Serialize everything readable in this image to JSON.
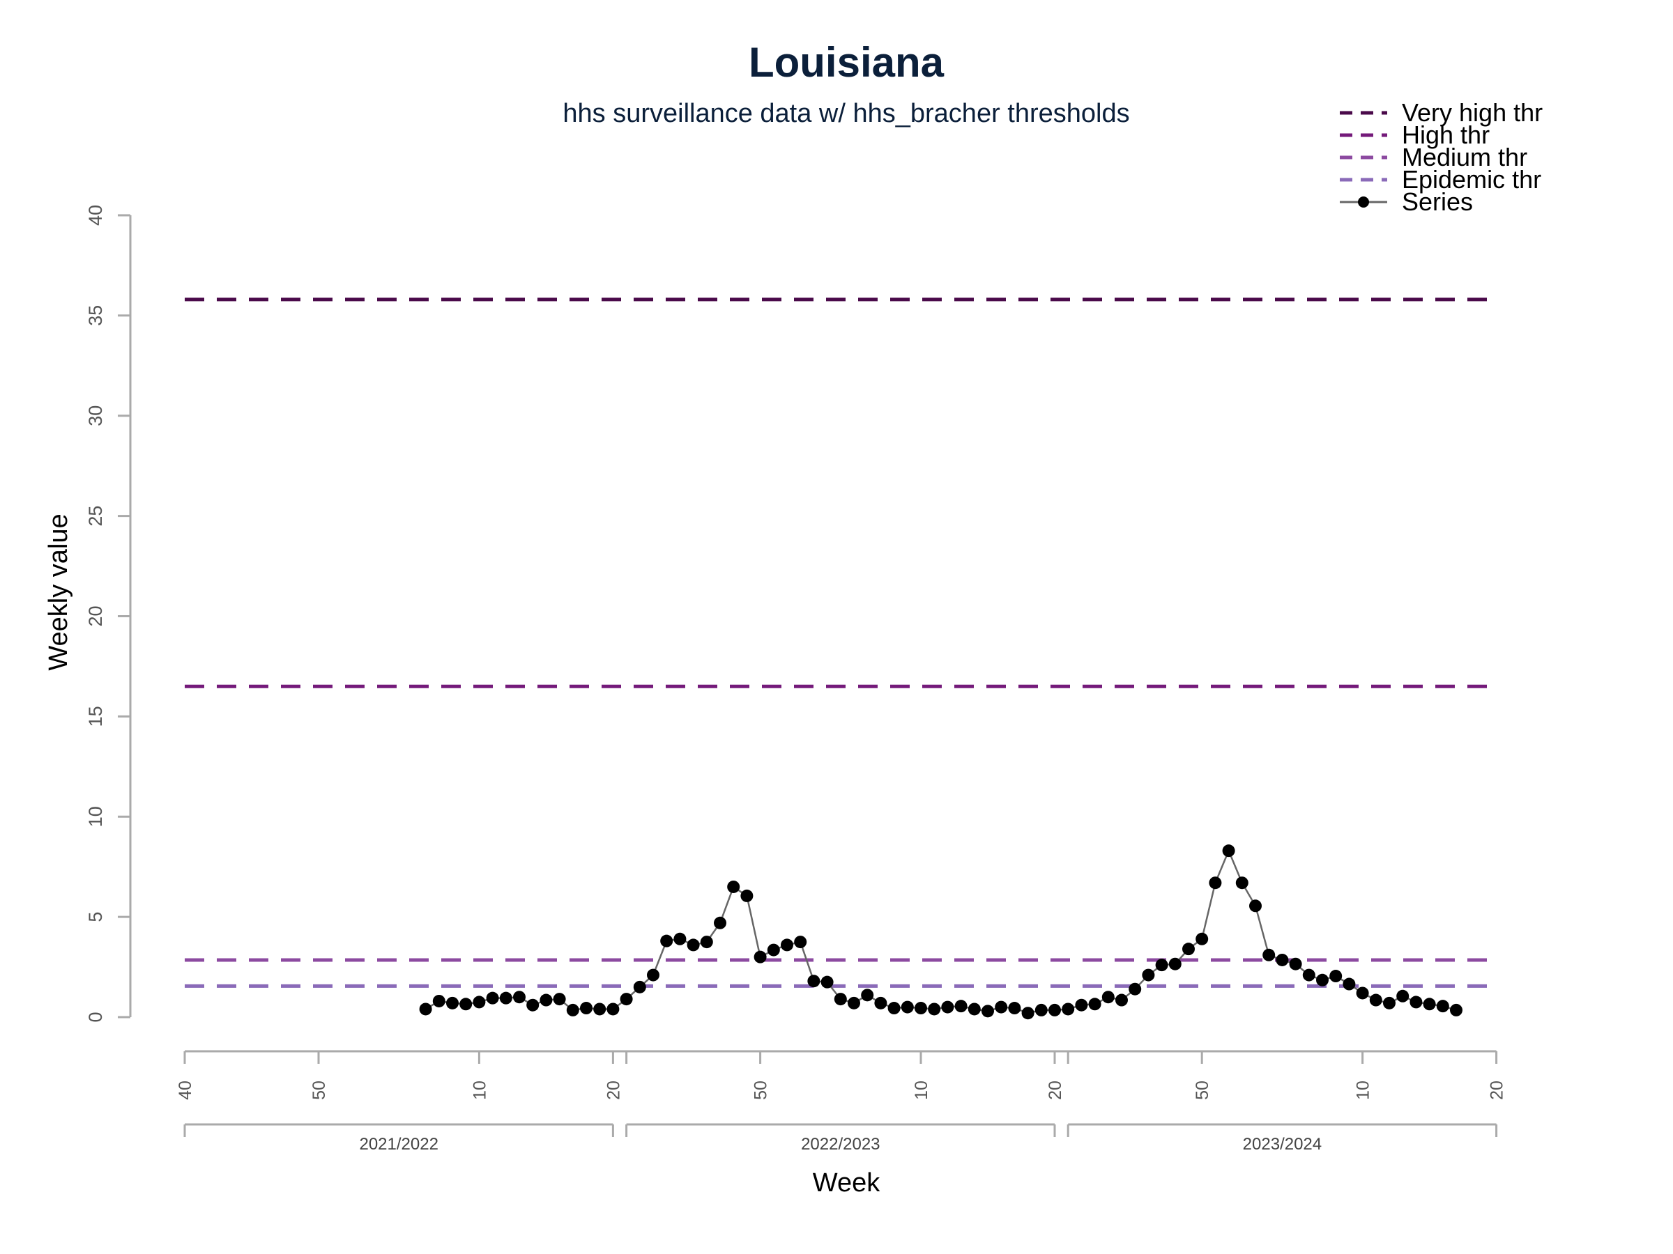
{
  "chart_data": {
    "type": "line",
    "title": "Louisiana",
    "subtitle": "hhs surveillance data w/ hhs_bracher thresholds",
    "xlabel": "Week",
    "ylabel": "Weekly value",
    "ylim": [
      0,
      40
    ],
    "yticks": [
      0,
      5,
      10,
      15,
      20,
      25,
      30,
      35,
      40
    ],
    "grid": false,
    "legend_position": "top-right",
    "week_ticks": [
      {
        "index": 0,
        "label": "40"
      },
      {
        "index": 10,
        "label": "50"
      },
      {
        "index": 22,
        "label": "10"
      },
      {
        "index": 32,
        "label": "20"
      },
      {
        "index": 33,
        "label": ""
      },
      {
        "index": 43,
        "label": "50"
      },
      {
        "index": 55,
        "label": "10"
      },
      {
        "index": 65,
        "label": "20"
      },
      {
        "index": 66,
        "label": ""
      },
      {
        "index": 76,
        "label": "50"
      },
      {
        "index": 88,
        "label": "10"
      },
      {
        "index": 98,
        "label": "20"
      }
    ],
    "seasons": [
      {
        "label": "2021/2022",
        "start_index": 0,
        "end_index": 32
      },
      {
        "label": "2022/2023",
        "start_index": 33,
        "end_index": 65
      },
      {
        "label": "2023/2024",
        "start_index": 66,
        "end_index": 98
      }
    ],
    "thresholds": [
      {
        "name": "Very high thr",
        "value": 35.8,
        "color": "#4a0a4a"
      },
      {
        "name": "High thr",
        "value": 16.5,
        "color": "#741a7a"
      },
      {
        "name": "Medium thr",
        "value": 2.85,
        "color": "#8c4aa0"
      },
      {
        "name": "Epidemic thr",
        "value": 1.55,
        "color": "#8a6ab8"
      }
    ],
    "series": [
      {
        "name": "Series",
        "color": "#000000",
        "line_color": "#666666",
        "start_index": 18,
        "values": [
          0.4,
          0.8,
          0.7,
          0.65,
          0.75,
          0.95,
          0.95,
          1.0,
          0.6,
          0.85,
          0.9,
          0.35,
          0.45,
          0.4,
          0.4,
          0.9,
          1.5,
          2.1,
          3.8,
          3.9,
          3.6,
          3.75,
          4.7,
          6.5,
          6.05,
          3.0,
          3.35,
          3.6,
          3.75,
          1.8,
          1.75,
          0.9,
          0.7,
          1.1,
          0.7,
          0.45,
          0.5,
          0.45,
          0.4,
          0.5,
          0.55,
          0.4,
          0.3,
          0.5,
          0.45,
          0.2,
          0.35,
          0.35,
          0.4,
          0.6,
          0.65,
          1.0,
          0.85,
          1.4,
          2.1,
          2.6,
          2.65,
          3.4,
          3.9,
          6.7,
          8.3,
          6.7,
          5.55,
          3.1,
          2.85,
          2.65,
          2.1,
          1.85,
          2.05,
          1.65,
          1.2,
          0.85,
          0.7,
          1.05,
          0.75,
          0.65,
          0.55,
          0.35
        ]
      }
    ]
  }
}
